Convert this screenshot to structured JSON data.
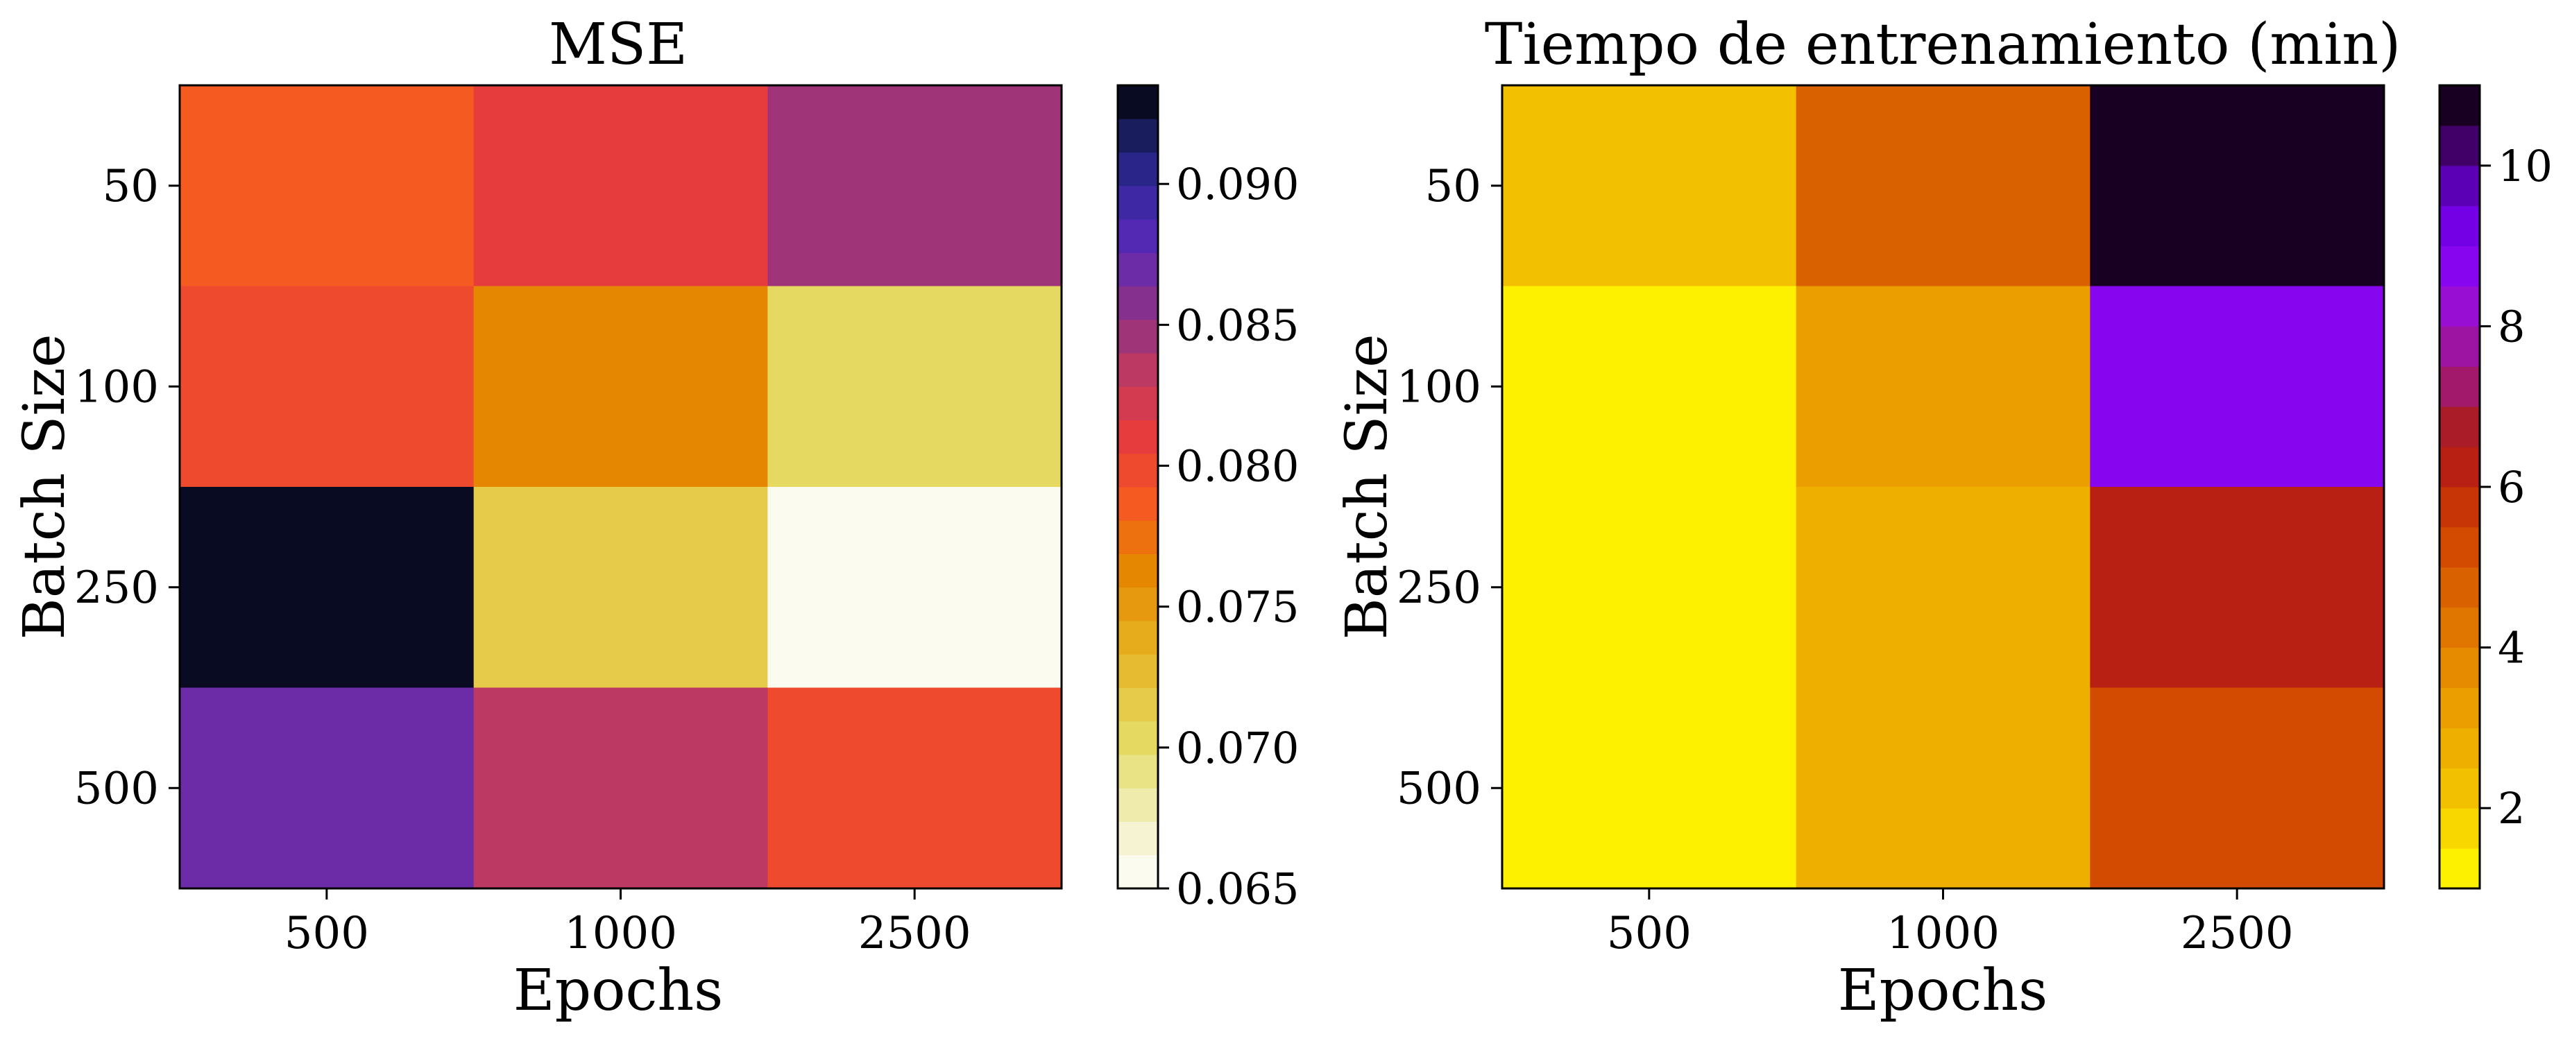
{
  "chart_data": [
    {
      "type": "heatmap",
      "title": "MSE",
      "xlabel": "Epochs",
      "ylabel": "Batch Size",
      "x_categories": [
        "500",
        "1000",
        "2500"
      ],
      "y_categories": [
        "50",
        "100",
        "250",
        "500"
      ],
      "values": [
        [
          0.0785,
          0.0815,
          0.085
        ],
        [
          0.08,
          0.076,
          0.07
        ],
        [
          0.0935,
          0.0715,
          0.065
        ],
        [
          0.087,
          0.083,
          0.08
        ]
      ],
      "colorbar": {
        "min": 0.065,
        "max": 0.0935,
        "levels": 24,
        "ticks": [
          0.065,
          0.07,
          0.075,
          0.08,
          0.085,
          0.09
        ],
        "tick_labels": [
          "0.065",
          "0.070",
          "0.075",
          "0.080",
          "0.085",
          "0.090"
        ],
        "colormap": "CMRmap_r (discrete)"
      }
    },
    {
      "type": "heatmap",
      "title": "Tiempo de entrenamiento (min)",
      "xlabel": "Epochs",
      "ylabel": "Batch Size",
      "x_categories": [
        "500",
        "1000",
        "2500"
      ],
      "y_categories": [
        "50",
        "100",
        "250",
        "500"
      ],
      "values": [
        [
          2.4,
          4.6,
          11.0
        ],
        [
          1.0,
          3.0,
          8.8
        ],
        [
          1.0,
          2.5,
          6.3
        ],
        [
          1.0,
          2.8,
          5.4
        ]
      ],
      "colorbar": {
        "min": 1.0,
        "max": 11.0,
        "levels": 20,
        "ticks": [
          2,
          4,
          6,
          8,
          10
        ],
        "tick_labels": [
          "2",
          "4",
          "6",
          "8",
          "10"
        ],
        "colormap": "gnuplot_r (discrete)"
      }
    }
  ]
}
